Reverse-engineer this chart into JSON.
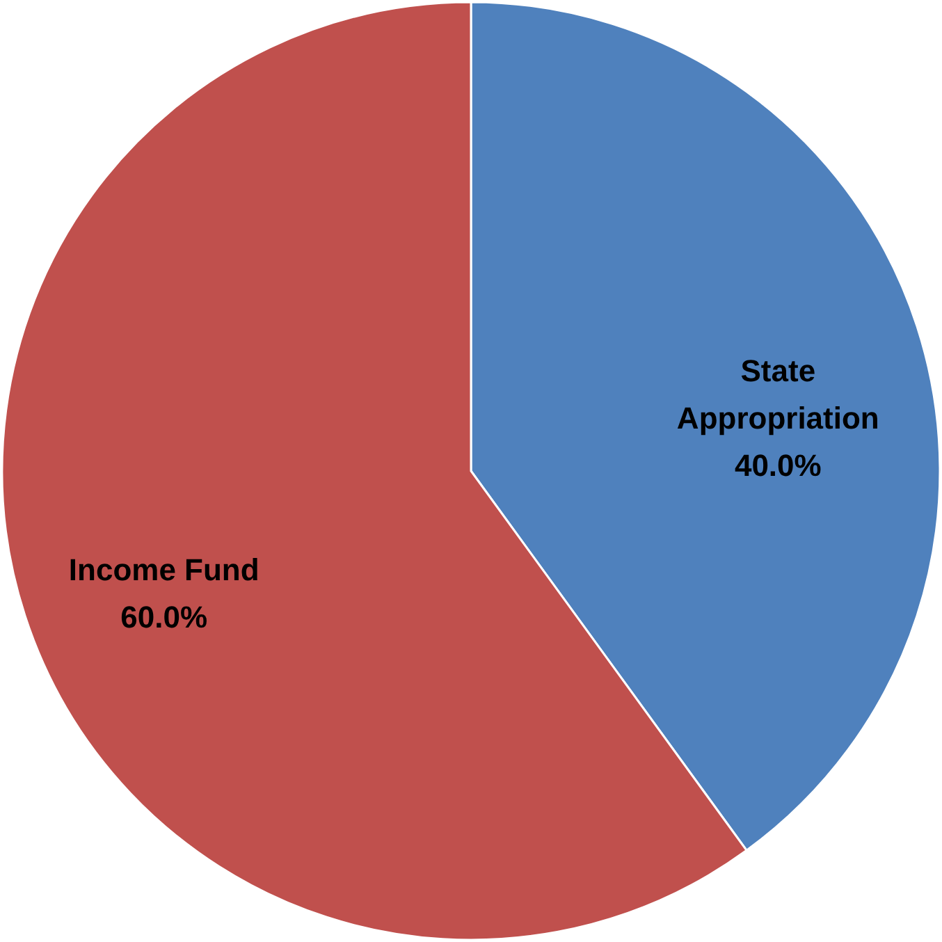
{
  "chart_data": {
    "type": "pie",
    "categories": [
      "State Appropriation",
      "Income Fund"
    ],
    "values": [
      40,
      60
    ],
    "colors": [
      "#4f81bd",
      "#c0504d"
    ],
    "value_labels": [
      "40.0%",
      "60.0%"
    ]
  }
}
